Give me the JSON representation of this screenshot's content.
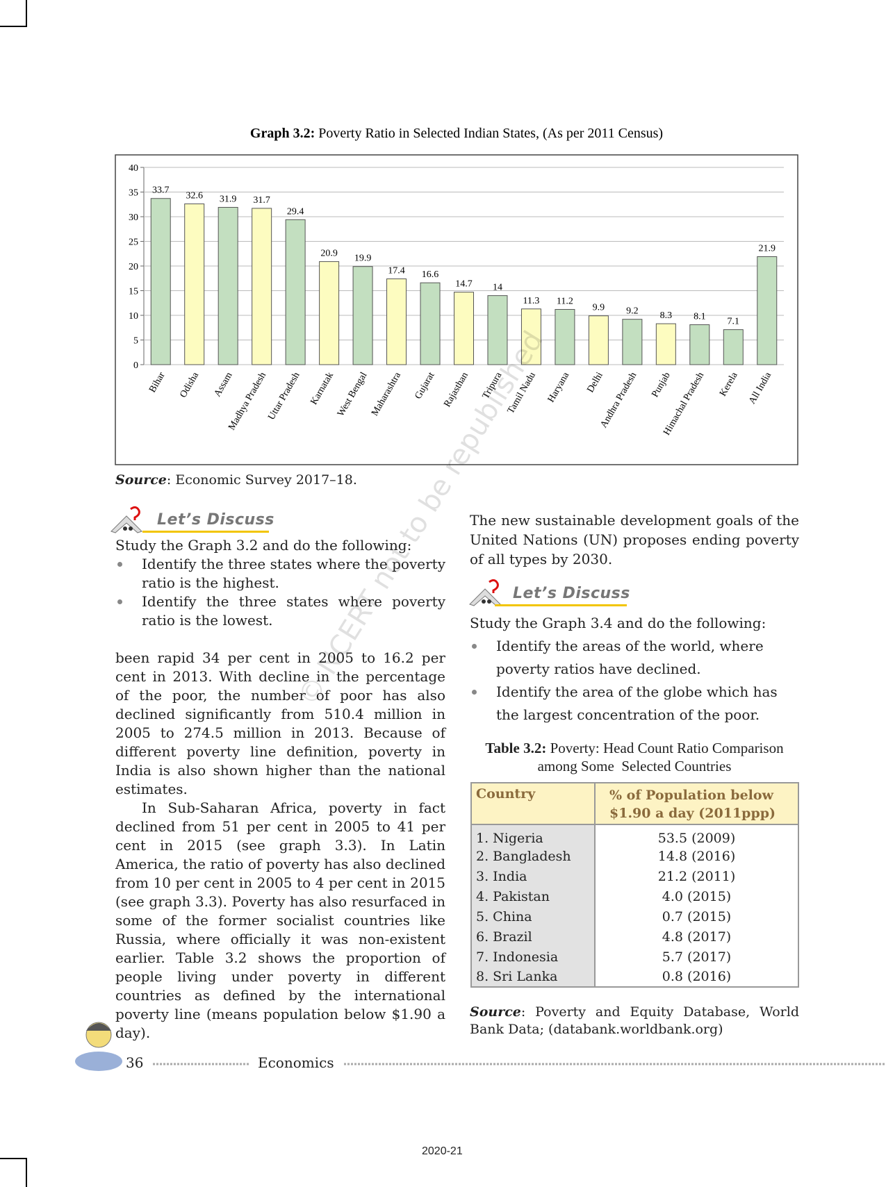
{
  "chart_data": {
    "type": "bar",
    "title_prefix": "Graph 3.2:",
    "title": "Poverty Ratio in Selected Indian States, (As per 2011 Census)",
    "categories": [
      "Bihar",
      "Odisha",
      "Assam",
      "Madhya Pradesh",
      "Uttar Pradesh",
      "Karnatak",
      "West Bengal",
      "Maharashtra",
      "Gujarat",
      "Rajasthan",
      "Tripura",
      "Tamil Nadu",
      "Haryana",
      "Delhi",
      "Andhra Pradesh",
      "Punjab",
      "Himachal Pradesh",
      "Kerela",
      "All India"
    ],
    "values": [
      33.7,
      32.6,
      31.9,
      31.7,
      29.4,
      20.9,
      19.9,
      17.4,
      16.6,
      14.7,
      14,
      11.3,
      11.2,
      9.9,
      9.2,
      8.3,
      8.1,
      7.1,
      21.9
    ],
    "colors": [
      "#c3dfc0",
      "#fdfcc0",
      "#c3dfc0",
      "#fdfcc0",
      "#c3dfc0",
      "#fdfcc0",
      "#c3dfc0",
      "#fdfcc0",
      "#c3dfc0",
      "#fdfcc0",
      "#c3dfc0",
      "#fdfcc0",
      "#c3dfc0",
      "#fdfcc0",
      "#c3dfc0",
      "#fdfcc0",
      "#c3dfc0",
      "#c3dfc0",
      "#c3dfc0"
    ],
    "ylim": [
      0,
      40
    ],
    "yticks": [
      0,
      5,
      10,
      15,
      20,
      25,
      30,
      35,
      40
    ],
    "grid": true
  },
  "chart_source": {
    "label": "Source",
    "text": ": Economic Survey 2017–18."
  },
  "discuss_1": {
    "heading": "Let’s Discuss",
    "intro": "Study the Graph 3.2 and do the following:",
    "bullets": [
      "Identify the three states where the poverty ratio is the highest.",
      "Identify the three states where poverty ratio is the lowest."
    ]
  },
  "left_paragraphs": [
    "been rapid 34 per cent in 2005 to 16.2 per cent in 2013. With decline in the percentage of the poor, the number of poor has also declined significantly from 510.4 million in 2005 to 274.5 million in 2013. Because of different poverty line definition, poverty in India is also shown higher than the national estimates.",
    "In Sub-Saharan Africa, poverty in fact declined from 51 per cent in 2005 to 41 per cent in 2015 (see graph 3.3). In Latin America, the ratio of poverty has also declined from 10 per cent in 2005 to 4 per cent in 2015 (see graph 3.3). Poverty has also resurfaced in some of the former socialist countries like Russia, where officially it was non-existent earlier. Table 3.2 shows the proportion of people living under poverty in different countries as defined by the international poverty line (means population below $1.90 a day)."
  ],
  "right_paragraph": "The new sustainable development goals of the United Nations (UN) proposes ending poverty of all types by 2030.",
  "discuss_2": {
    "heading": "Let’s Discuss",
    "intro": "Study the Graph 3.4 and do the following:",
    "bullets": [
      "Identify the areas of the world, where poverty ratios have declined.",
      "Identify the area of the globe which has the largest concentration of the poor."
    ]
  },
  "table": {
    "caption_label": "Table 3.2:",
    "caption": "Poverty: Head Count Ratio Comparison among Some  Selected Countries",
    "header": [
      "Country",
      "% of Population below $1.90 a day (2011ppp)"
    ],
    "rows": [
      [
        "1. Nigeria",
        "53.5 (2009)"
      ],
      [
        "2. Bangladesh",
        "14.8 (2016)"
      ],
      [
        "3. India",
        "21.2 (2011)"
      ],
      [
        "4. Pakistan",
        "4.0 (2015)"
      ],
      [
        "5. China",
        "0.7 (2015)"
      ],
      [
        "6. Brazil",
        "4.8 (2017)"
      ],
      [
        "7. Indonesia",
        "5.7 (2017)"
      ],
      [
        "8. Sri Lanka",
        "0.8 (2016)"
      ]
    ]
  },
  "table_source": {
    "label": "Source",
    "text": ": Poverty and Equity Database, World Bank Data; (databank.worldbank.org)"
  },
  "watermark": "© NCERT not to be republished",
  "footer": {
    "page_number": "36",
    "book": "Economics",
    "year": "2020-21"
  }
}
